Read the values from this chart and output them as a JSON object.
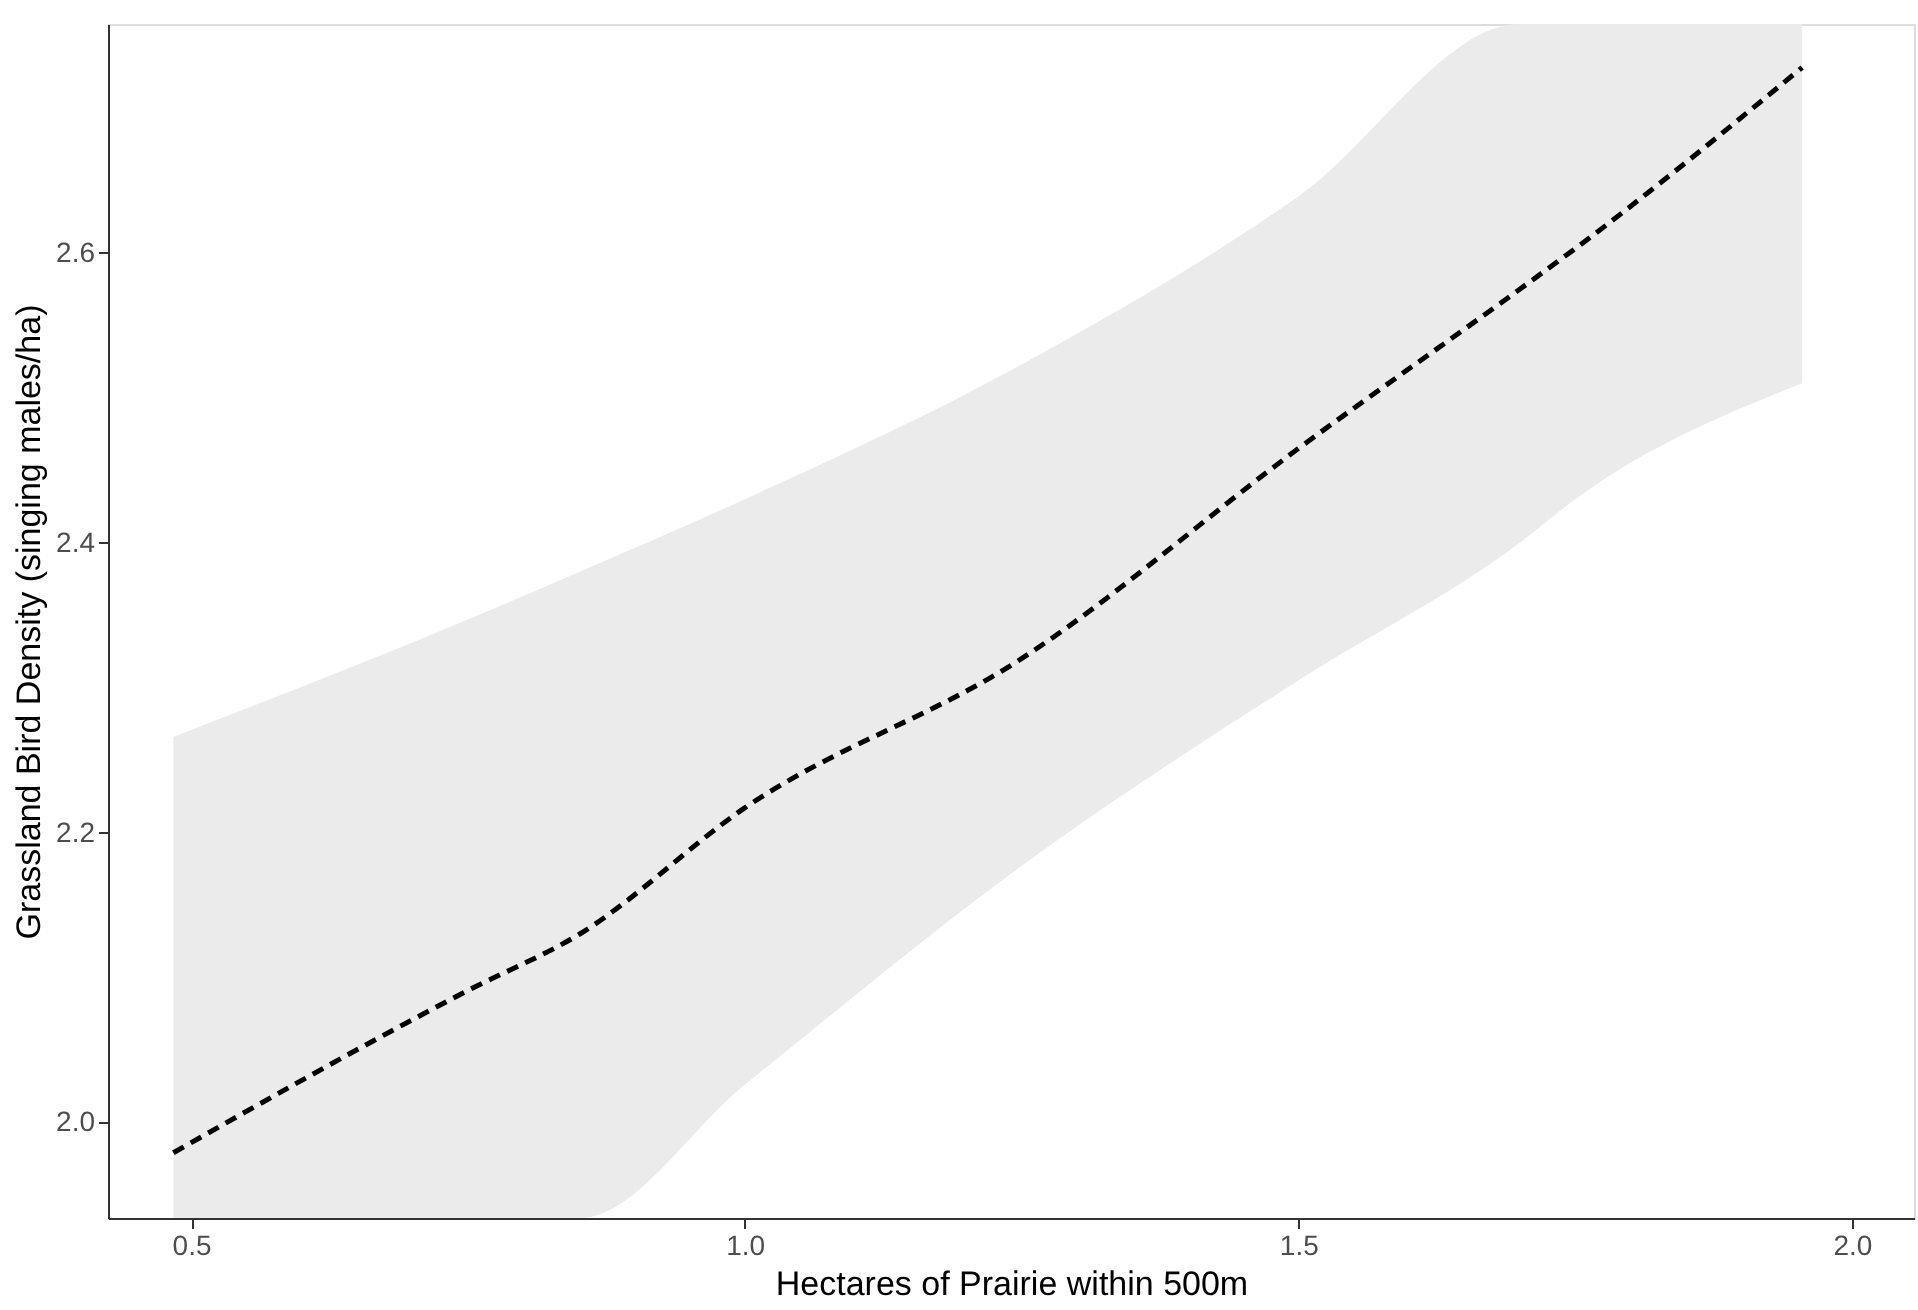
{
  "chart_data": {
    "type": "line",
    "xlabel": "Hectares of Prairie within 500m",
    "ylabel": "Grassland Bird Density (singing males/ha)",
    "xlim": [
      0.425,
      2.056
    ],
    "xticks": [
      0.5,
      {
        "value": 1.0,
        "label": "1.0"
      },
      1.5,
      {
        "value": 2.0,
        "label": "2.0"
      }
    ],
    "ylim": [
      1.934,
      2.758
    ],
    "yticks": [
      {
        "value": 2.0,
        "label": "2.0"
      },
      2.2,
      2.4,
      2.6
    ],
    "grid": false,
    "line_style": "dashed",
    "marker": "none",
    "series": [
      {
        "color": "#000000",
        "x": [
          0.484,
          0.75,
          0.851,
          1.0,
          1.25,
          1.5,
          1.7,
          1.75,
          1.955
        ],
        "values": [
          1.979,
          2.091,
          2.13,
          2.217,
          2.32,
          2.465,
          2.575,
          2.603,
          2.728
        ],
        "lower": [
          1.934,
          1.934,
          1.934,
          2.026,
          2.177,
          2.305,
          2.4,
          2.43,
          2.51
        ],
        "upper": [
          2.266,
          2.347,
          2.38,
          2.43,
          2.523,
          2.639,
          2.758,
          2.758,
          2.758
        ]
      }
    ]
  }
}
